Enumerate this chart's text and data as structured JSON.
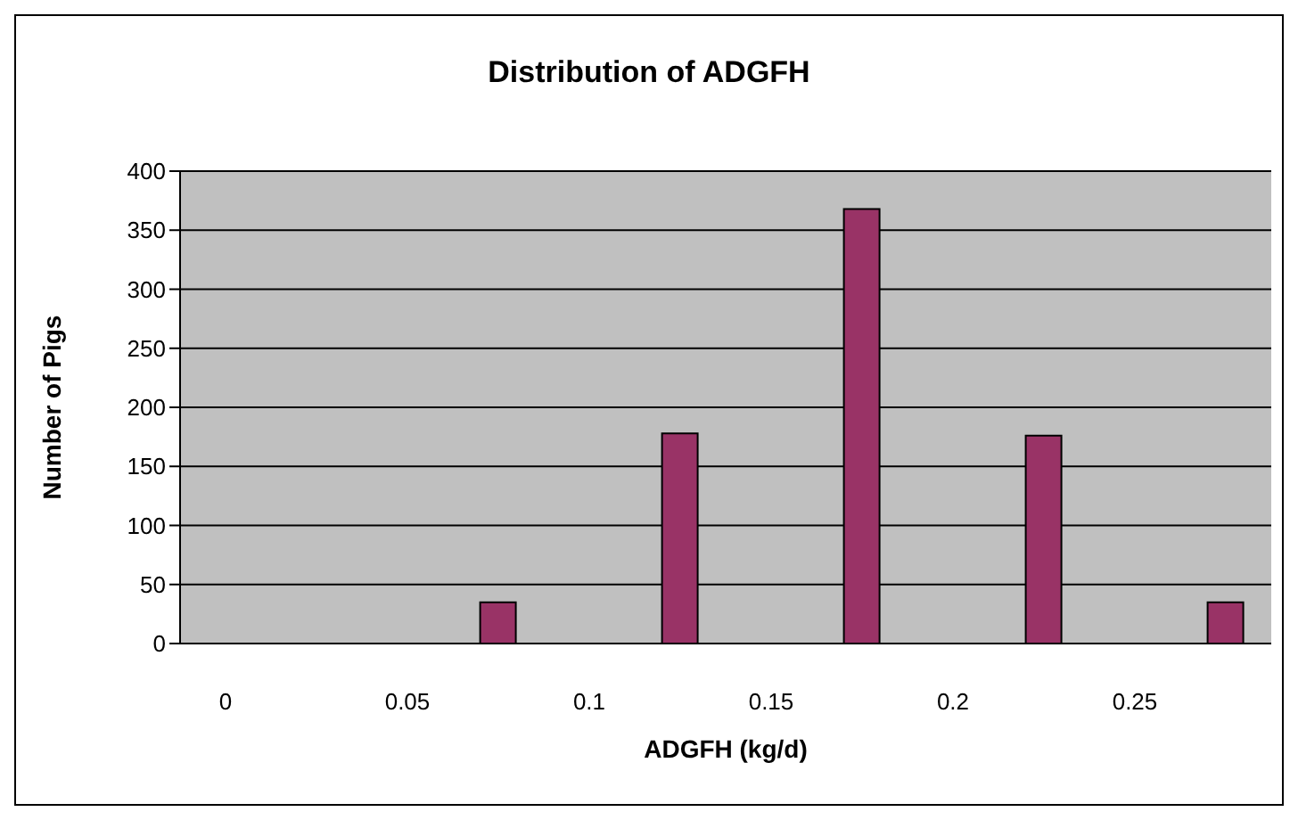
{
  "chart_data": {
    "type": "bar",
    "title": "Distribution of ADGFH",
    "xlabel": "ADGFH (kg/d)",
    "ylabel": "Number of Pigs",
    "categories": [
      "0",
      null,
      "0.05",
      null,
      "0.1",
      null,
      "0.15",
      null,
      "0.2",
      null,
      "0.25",
      null
    ],
    "series": [
      {
        "color": "#993366",
        "values": [
          0,
          0,
          0,
          35,
          0,
          178,
          0,
          368,
          0,
          176,
          0,
          35
        ]
      }
    ],
    "ylim": [
      0,
      400
    ],
    "yticks": [
      0,
      50,
      100,
      150,
      200,
      250,
      300,
      350,
      400
    ],
    "grid": "y",
    "legend": false
  }
}
